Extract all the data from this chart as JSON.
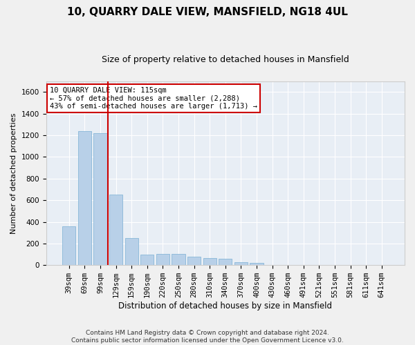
{
  "title": "10, QUARRY DALE VIEW, MANSFIELD, NG18 4UL",
  "subtitle": "Size of property relative to detached houses in Mansfield",
  "xlabel": "Distribution of detached houses by size in Mansfield",
  "ylabel": "Number of detached properties",
  "footnote": "Contains HM Land Registry data © Crown copyright and database right 2024.\nContains public sector information licensed under the Open Government Licence v3.0.",
  "bar_labels": [
    "39sqm",
    "69sqm",
    "99sqm",
    "129sqm",
    "159sqm",
    "190sqm",
    "220sqm",
    "250sqm",
    "280sqm",
    "310sqm",
    "340sqm",
    "370sqm",
    "400sqm",
    "430sqm",
    "460sqm",
    "491sqm",
    "521sqm",
    "551sqm",
    "581sqm",
    "611sqm",
    "641sqm"
  ],
  "bar_values": [
    360,
    1240,
    1220,
    650,
    250,
    100,
    105,
    105,
    75,
    65,
    60,
    30,
    20,
    0,
    0,
    0,
    0,
    0,
    0,
    0,
    0
  ],
  "bar_color": "#b8d0e8",
  "bar_edge_color": "#7aafd4",
  "vline_color": "#cc0000",
  "ylim": [
    0,
    1700
  ],
  "yticks": [
    0,
    200,
    400,
    600,
    800,
    1000,
    1200,
    1400,
    1600
  ],
  "annotation_text": "10 QUARRY DALE VIEW: 115sqm\n← 57% of detached houses are smaller (2,288)\n43% of semi-detached houses are larger (1,713) →",
  "annotation_box_color": "#ffffff",
  "annotation_box_edge": "#cc0000",
  "background_color": "#e8eef5",
  "fig_background": "#f0f0f0",
  "grid_color": "#ffffff",
  "title_fontsize": 11,
  "subtitle_fontsize": 9,
  "xlabel_fontsize": 8.5,
  "ylabel_fontsize": 8,
  "tick_fontsize": 7.5,
  "footnote_fontsize": 6.5
}
